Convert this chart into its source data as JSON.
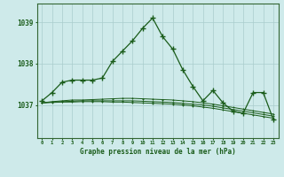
{
  "xlabel": "Graphe pression niveau de la mer (hPa)",
  "bg_color": "#ceeaea",
  "grid_color": "#aacccc",
  "line_color": "#1a5c1a",
  "marker_color": "#1a5c1a",
  "axis_color": "#336633",
  "text_color": "#1a5c1a",
  "ylim_min": 1036.2,
  "ylim_max": 1039.45,
  "yticks": [
    1037,
    1038,
    1039
  ],
  "xticks": [
    0,
    1,
    2,
    3,
    4,
    5,
    6,
    7,
    8,
    9,
    10,
    11,
    12,
    13,
    14,
    15,
    16,
    17,
    18,
    19,
    20,
    21,
    22,
    23
  ],
  "series": [
    [
      1037.1,
      1037.3,
      1037.55,
      1037.6,
      1037.6,
      1037.6,
      1037.65,
      1038.05,
      1038.3,
      1038.55,
      1038.85,
      1039.1,
      1038.65,
      1038.35,
      1037.85,
      1037.45,
      1037.1,
      1037.35,
      1037.05,
      1036.85,
      1036.8,
      1037.3,
      1037.3,
      1036.65
    ],
    [
      1037.05,
      1037.08,
      1037.1,
      1037.12,
      1037.12,
      1037.13,
      1037.14,
      1037.15,
      1037.16,
      1037.16,
      1037.15,
      1037.14,
      1037.13,
      1037.12,
      1037.1,
      1037.08,
      1037.05,
      1037.02,
      1036.98,
      1036.94,
      1036.9,
      1036.86,
      1036.82,
      1036.78
    ],
    [
      1037.05,
      1037.07,
      1037.08,
      1037.09,
      1037.1,
      1037.1,
      1037.1,
      1037.1,
      1037.1,
      1037.1,
      1037.09,
      1037.08,
      1037.07,
      1037.06,
      1037.04,
      1037.02,
      1037.0,
      1036.97,
      1036.93,
      1036.89,
      1036.85,
      1036.81,
      1036.77,
      1036.73
    ],
    [
      1037.05,
      1037.06,
      1037.07,
      1037.07,
      1037.08,
      1037.08,
      1037.08,
      1037.07,
      1037.07,
      1037.06,
      1037.05,
      1037.04,
      1037.03,
      1037.02,
      1037.0,
      1036.98,
      1036.95,
      1036.92,
      1036.88,
      1036.84,
      1036.8,
      1036.76,
      1036.72,
      1036.68
    ]
  ]
}
